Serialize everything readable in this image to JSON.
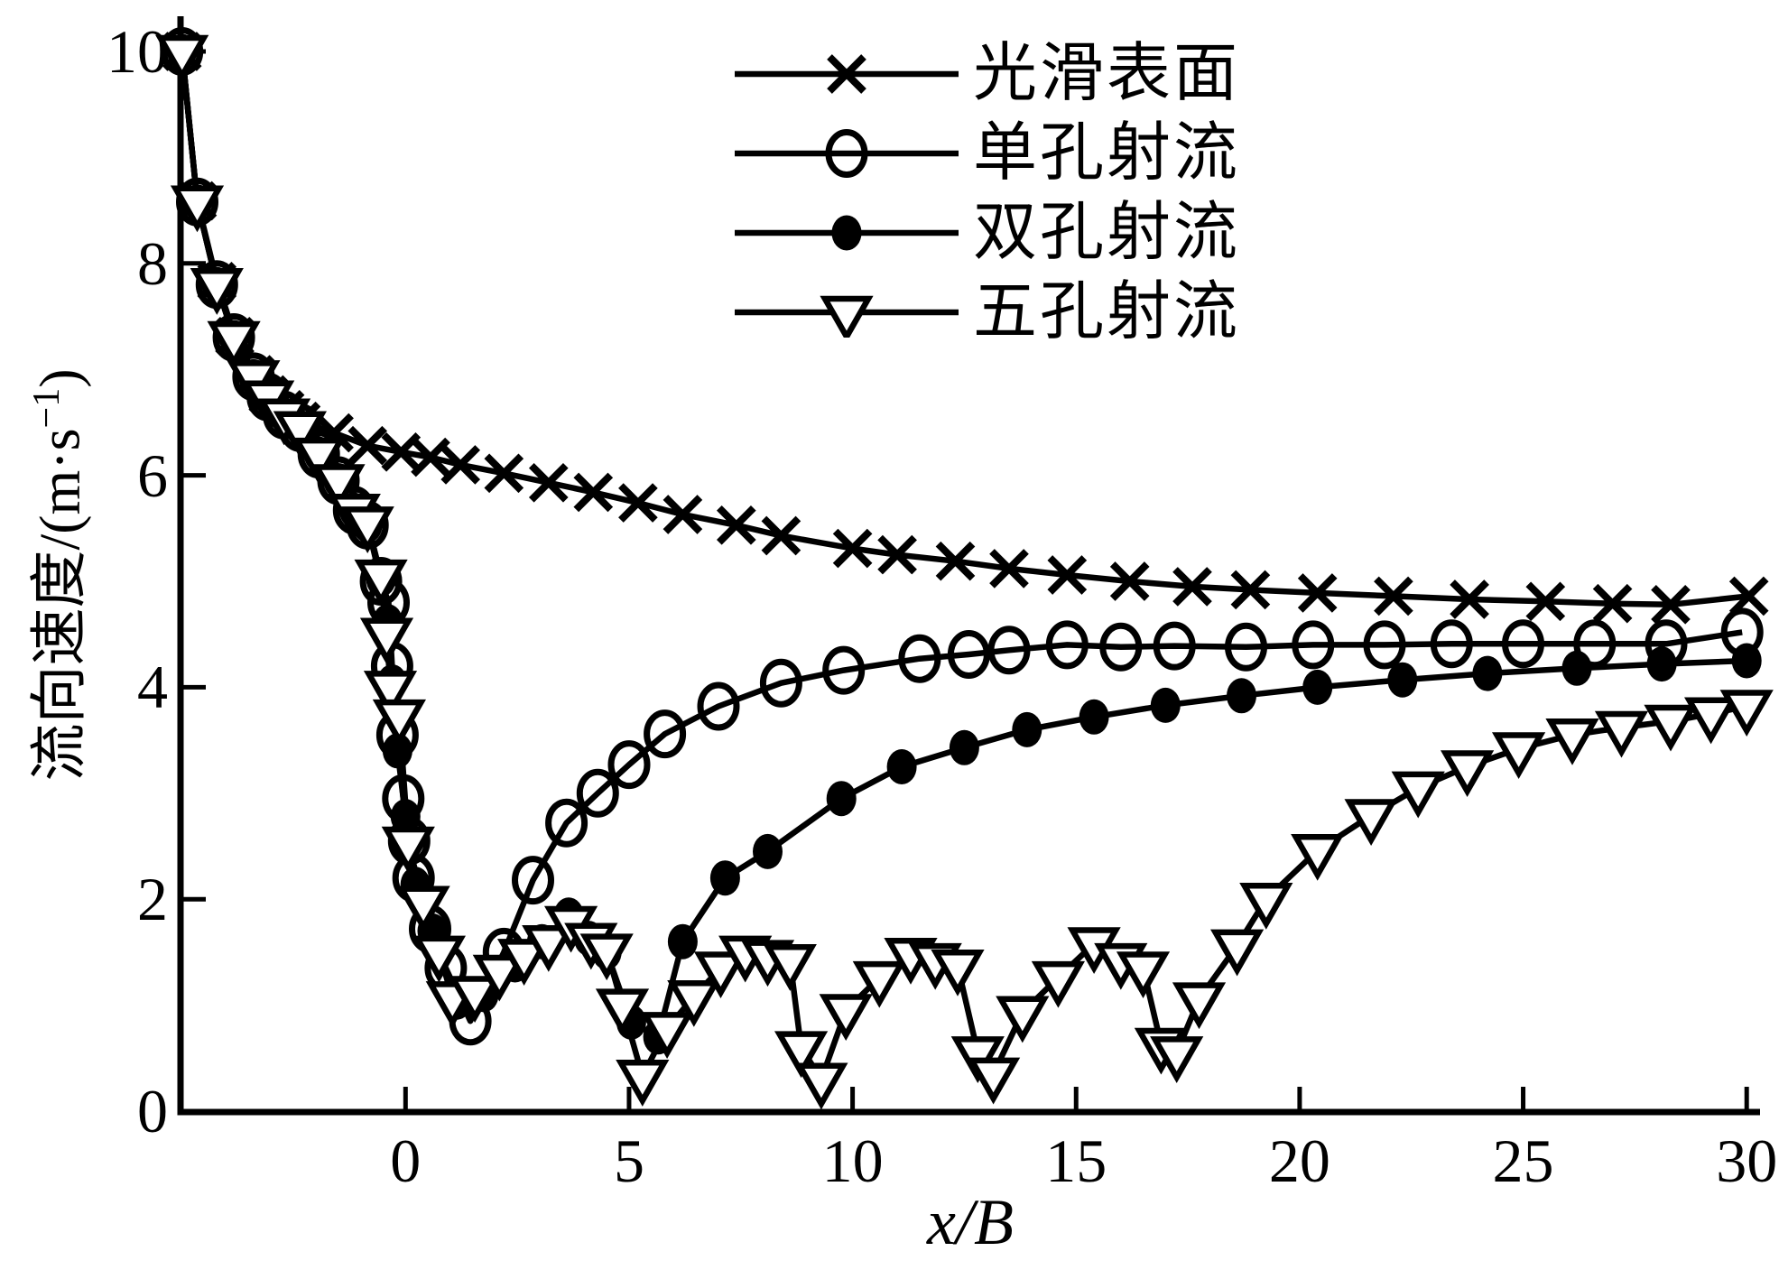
{
  "chart_data": {
    "type": "line",
    "title": "",
    "xlabel": "x/B",
    "ylabel_prefix": "流向速度/(m·s",
    "ylabel_sup": "−1",
    "ylabel_suffix": ")",
    "x_ticks": [
      0,
      5,
      10,
      15,
      20,
      25,
      30
    ],
    "y_ticks": [
      0,
      2,
      4,
      6,
      8,
      10
    ],
    "xlim": [
      -5.1,
      30.3
    ],
    "ylim": [
      0,
      10.2
    ],
    "grid": false,
    "legend_position": "upper right inside",
    "line_color": "#000000",
    "background_color": "#ffffff",
    "series": [
      {
        "name": "光滑表面",
        "marker": "x",
        "points": [
          [
            -5,
            10
          ],
          [
            -4.66,
            8.59
          ],
          [
            -4.22,
            7.83
          ],
          [
            -3.82,
            7.31
          ],
          [
            -3.37,
            6.95
          ],
          [
            -3.07,
            6.76
          ],
          [
            -2.7,
            6.62
          ],
          [
            -2.34,
            6.51
          ],
          [
            -1.6,
            6.4
          ],
          [
            -0.85,
            6.28
          ],
          [
            -0.1,
            6.22
          ],
          [
            0.56,
            6.17
          ],
          [
            1.23,
            6.1
          ],
          [
            2.2,
            6.02
          ],
          [
            3.2,
            5.93
          ],
          [
            4.2,
            5.84
          ],
          [
            5.2,
            5.74
          ],
          [
            6.2,
            5.63
          ],
          [
            7.4,
            5.53
          ],
          [
            8.4,
            5.43
          ],
          [
            10,
            5.31
          ],
          [
            11,
            5.25
          ],
          [
            12.3,
            5.19
          ],
          [
            13.5,
            5.12
          ],
          [
            14.8,
            5.06
          ],
          [
            16.2,
            5.0
          ],
          [
            17.6,
            4.95
          ],
          [
            18.9,
            4.92
          ],
          [
            20.4,
            4.89
          ],
          [
            22.1,
            4.86
          ],
          [
            23.8,
            4.83
          ],
          [
            25.5,
            4.81
          ],
          [
            27,
            4.79
          ],
          [
            28.3,
            4.78
          ],
          [
            30.05,
            4.86
          ]
        ]
      },
      {
        "name": "单孔射流",
        "marker": "circle-open",
        "points": [
          [
            -5,
            10
          ],
          [
            -4.66,
            8.58
          ],
          [
            -4.22,
            7.8
          ],
          [
            -3.84,
            7.3
          ],
          [
            -3.4,
            6.93
          ],
          [
            -3.08,
            6.74
          ],
          [
            -2.72,
            6.57
          ],
          [
            -2.36,
            6.45
          ],
          [
            -1.94,
            6.2
          ],
          [
            -1.5,
            5.95
          ],
          [
            -1.15,
            5.67
          ],
          [
            -0.85,
            5.53
          ],
          [
            -0.55,
            5.0
          ],
          [
            -0.38,
            4.8
          ],
          [
            -0.3,
            4.2
          ],
          [
            -0.18,
            3.55
          ],
          [
            -0.05,
            2.95
          ],
          [
            0.08,
            2.55
          ],
          [
            0.18,
            2.2
          ],
          [
            0.55,
            1.72
          ],
          [
            0.9,
            1.35
          ],
          [
            1.45,
            0.85
          ],
          [
            2.2,
            1.5
          ],
          [
            2.85,
            2.18
          ],
          [
            3.6,
            2.72
          ],
          [
            4.3,
            3.0
          ],
          [
            5,
            3.27
          ],
          [
            5.8,
            3.56
          ],
          [
            7,
            3.82
          ],
          [
            8.4,
            4.04
          ],
          [
            9.8,
            4.16
          ],
          [
            11.5,
            4.27
          ],
          [
            12.6,
            4.31
          ],
          [
            13.5,
            4.35
          ],
          [
            14.8,
            4.4
          ],
          [
            16,
            4.38
          ],
          [
            17.2,
            4.39
          ],
          [
            18.8,
            4.38
          ],
          [
            20.3,
            4.4
          ],
          [
            21.9,
            4.4
          ],
          [
            23.4,
            4.41
          ],
          [
            25,
            4.41
          ],
          [
            26.6,
            4.41
          ],
          [
            28.2,
            4.41
          ],
          [
            29.9,
            4.52
          ]
        ]
      },
      {
        "name": "双孔射流",
        "marker": "circle-filled",
        "points": [
          [
            -5,
            10
          ],
          [
            -4.66,
            8.58
          ],
          [
            -4.22,
            7.8
          ],
          [
            -3.84,
            7.3
          ],
          [
            -3.4,
            6.93
          ],
          [
            -3.08,
            6.74
          ],
          [
            -2.72,
            6.57
          ],
          [
            -2.36,
            6.45
          ],
          [
            -1.94,
            6.2
          ],
          [
            -1.5,
            5.95
          ],
          [
            -1.15,
            5.67
          ],
          [
            -0.85,
            5.53
          ],
          [
            -0.55,
            5.02
          ],
          [
            -0.4,
            4.62
          ],
          [
            -0.3,
            4.05
          ],
          [
            -0.18,
            3.4
          ],
          [
            0,
            2.78
          ],
          [
            0.22,
            2.14
          ],
          [
            0.6,
            1.7
          ],
          [
            1.15,
            1.03
          ],
          [
            1.75,
            1.1
          ],
          [
            2.45,
            1.38
          ],
          [
            3.05,
            1.6
          ],
          [
            3.65,
            1.85
          ],
          [
            4.1,
            1.63
          ],
          [
            4.5,
            1.5
          ],
          [
            5.05,
            0.84
          ],
          [
            5.65,
            0.7
          ],
          [
            6.2,
            1.6
          ],
          [
            7.15,
            2.2
          ],
          [
            8.1,
            2.45
          ],
          [
            9.75,
            2.95
          ],
          [
            11.1,
            3.25
          ],
          [
            12.5,
            3.43
          ],
          [
            13.9,
            3.6
          ],
          [
            15.4,
            3.72
          ],
          [
            17,
            3.83
          ],
          [
            18.7,
            3.92
          ],
          [
            20.4,
            4.0
          ],
          [
            22.3,
            4.07
          ],
          [
            24.2,
            4.13
          ],
          [
            26.2,
            4.18
          ],
          [
            28.1,
            4.22
          ],
          [
            30,
            4.25
          ]
        ]
      },
      {
        "name": "五孔射流",
        "marker": "triangle-down-open",
        "points": [
          [
            -5,
            10
          ],
          [
            -4.66,
            8.58
          ],
          [
            -4.22,
            7.8
          ],
          [
            -3.84,
            7.3
          ],
          [
            -3.4,
            6.93
          ],
          [
            -3.08,
            6.74
          ],
          [
            -2.72,
            6.57
          ],
          [
            -2.36,
            6.45
          ],
          [
            -1.94,
            6.2
          ],
          [
            -1.5,
            5.95
          ],
          [
            -1.15,
            5.67
          ],
          [
            -0.85,
            5.55
          ],
          [
            -0.55,
            5.05
          ],
          [
            -0.42,
            4.5
          ],
          [
            -0.34,
            4.0
          ],
          [
            -0.14,
            3.73
          ],
          [
            0.06,
            2.53
          ],
          [
            0.4,
            1.97
          ],
          [
            0.75,
            1.5
          ],
          [
            1.05,
            1.07
          ],
          [
            1.55,
            1.12
          ],
          [
            2.1,
            1.32
          ],
          [
            2.65,
            1.47
          ],
          [
            3.2,
            1.6
          ],
          [
            3.7,
            1.78
          ],
          [
            4.15,
            1.62
          ],
          [
            4.5,
            1.52
          ],
          [
            4.85,
            1.0
          ],
          [
            5.3,
            0.33
          ],
          [
            5.85,
            0.78
          ],
          [
            6.45,
            1.08
          ],
          [
            7.05,
            1.35
          ],
          [
            7.6,
            1.5
          ],
          [
            8.1,
            1.46
          ],
          [
            8.6,
            1.42
          ],
          [
            8.85,
            0.6
          ],
          [
            9.3,
            0.3
          ],
          [
            9.85,
            0.95
          ],
          [
            10.6,
            1.26
          ],
          [
            11.3,
            1.48
          ],
          [
            11.85,
            1.43
          ],
          [
            12.35,
            1.37
          ],
          [
            12.8,
            0.55
          ],
          [
            13.15,
            0.35
          ],
          [
            13.8,
            0.93
          ],
          [
            14.6,
            1.26
          ],
          [
            15.4,
            1.58
          ],
          [
            16,
            1.43
          ],
          [
            16.5,
            1.35
          ],
          [
            16.9,
            0.63
          ],
          [
            17.25,
            0.55
          ],
          [
            17.75,
            1.06
          ],
          [
            18.6,
            1.56
          ],
          [
            19.25,
            2.0
          ],
          [
            20.4,
            2.46
          ],
          [
            21.6,
            2.79
          ],
          [
            22.65,
            3.05
          ],
          [
            23.75,
            3.25
          ],
          [
            24.9,
            3.42
          ],
          [
            26.1,
            3.55
          ],
          [
            27.2,
            3.62
          ],
          [
            28.3,
            3.68
          ],
          [
            29.2,
            3.75
          ],
          [
            30,
            3.82
          ]
        ]
      }
    ]
  }
}
